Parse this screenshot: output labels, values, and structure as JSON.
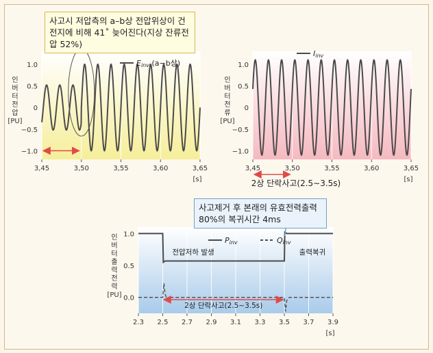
{
  "colors": {
    "left_bg_top": "#ffffff",
    "left_bg_bottom": "#f6ee9a",
    "right_bg_top": "#ffffff",
    "right_bg_bottom": "#f5b9c0",
    "bottom_bg_top": "#ffffff",
    "bottom_bg_bottom": "#a9cbea",
    "trace": "#4a4a4a",
    "arrow": "#e04a4a"
  },
  "callouts": {
    "top": "사고시 저압측의 a–b상 전압위상이 건전지에 비해 41˚ 늦어진다(지상 잔류전압 52%)",
    "bottom": "사고제거 후 본래의 유효전력출력 80%의 복귀시간 4ms"
  },
  "chart_data": [
    {
      "type": "line",
      "ylabel_lines": [
        "인",
        "버",
        "터",
        "전",
        "압",
        "[PU]"
      ],
      "xlabel": "[s]",
      "series": [
        {
          "name": "Einv (a−b상)",
          "name_main": "E",
          "name_sub": "inv",
          "name_rest": "(a−b상)"
        }
      ],
      "xlim": [
        3.45,
        3.65
      ],
      "ylim": [
        -1.2,
        1.3
      ],
      "xticks": [
        "3,45",
        "3,50",
        "3,55",
        "3,60",
        "3,65"
      ],
      "yticks": [
        "1.0",
        "0.5",
        "0",
        "−0.5",
        "−1.0"
      ],
      "ytick_values": [
        1.0,
        0.5,
        0,
        -0.5,
        -1.0
      ],
      "frequency_hz": 60,
      "fault_start": 3.45,
      "fault_end": 3.5,
      "pre_amplitude": 0.52,
      "pre_offset": 0.0,
      "post_amplitude": 1.0,
      "phase_shift_deg": 41
    },
    {
      "type": "line",
      "ylabel_lines": [
        "인",
        "버",
        "터",
        "전",
        "류",
        "[PU]"
      ],
      "xlabel": "[s]",
      "series": [
        {
          "name": "Iinv",
          "name_main": "I",
          "name_sub": "inv",
          "name_rest": ""
        }
      ],
      "xlim": [
        3.45,
        3.65
      ],
      "ylim": [
        -1.2,
        1.3
      ],
      "xticks": [
        "3,45",
        "3,50",
        "3,55",
        "3,60",
        "3,65"
      ],
      "yticks": [
        "1.0",
        "0.5",
        "0",
        "−0.5",
        "−1.0"
      ],
      "ytick_values": [
        1.0,
        0.5,
        0,
        -0.5,
        -1.0
      ],
      "frequency_hz": 60,
      "amplitude": 1.1,
      "annotation": "2상 단락사고(2.5∼3.5s)"
    },
    {
      "type": "line",
      "ylabel_lines": [
        "인",
        "버",
        "터",
        "출",
        "력",
        "전",
        "력",
        "[PU]"
      ],
      "xlabel": "[s]",
      "series": [
        {
          "name": "Pinv",
          "name_main": "P",
          "name_sub": "inv",
          "style": "solid",
          "x": [
            2.3,
            2.5,
            2.505,
            2.52,
            3.5,
            3.504,
            3.52,
            3.9
          ],
          "y": [
            1.0,
            1.0,
            0.55,
            0.57,
            0.57,
            1.02,
            1.0,
            1.0
          ]
        },
        {
          "name": "Qinv",
          "name_main": "Q",
          "name_sub": "inv",
          "style": "dashed",
          "x": [
            2.3,
            2.5,
            2.51,
            2.52,
            2.54,
            2.56,
            3.5,
            3.51,
            3.52,
            3.54,
            3.9
          ],
          "y": [
            0.0,
            0.0,
            0.22,
            0.05,
            -0.05,
            0.0,
            0.0,
            -0.22,
            -0.05,
            0.0,
            0.0
          ]
        }
      ],
      "xlim": [
        2.3,
        3.9
      ],
      "ylim": [
        -0.25,
        1.1
      ],
      "xticks": [
        "2.3",
        "2.5",
        "2.7",
        "2.9",
        "3.1",
        "3.3",
        "3.5",
        "3.7",
        "3.9"
      ],
      "yticks": [
        "1.0",
        "0.5",
        "0.0"
      ],
      "ytick_values": [
        1.0,
        0.5,
        0.0
      ],
      "annotations": {
        "drop": "전압저하 발생",
        "recover": "출력복귀",
        "fault": "2상 단락사고(2.5∼3.5s)"
      }
    }
  ]
}
